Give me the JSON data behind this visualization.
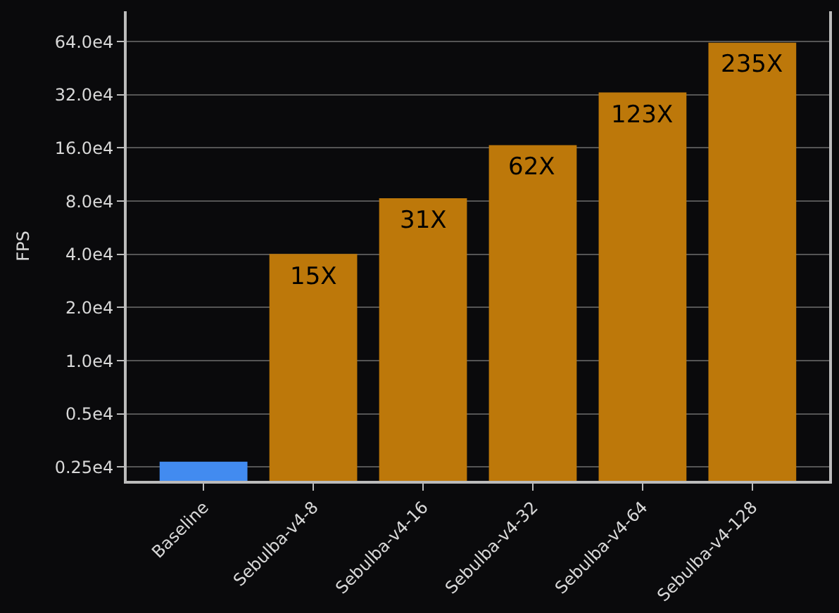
{
  "chart_data": {
    "type": "bar",
    "ylabel": "FPS",
    "categories": [
      "Baseline",
      "Sebulba-v4-8",
      "Sebulba-v4-16",
      "Sebulba-v4-32",
      "Sebulba-v4-64",
      "Sebulba-v4-128"
    ],
    "values": [
      2680,
      40200,
      83000,
      166000,
      330000,
      630000
    ],
    "colors": [
      "#428bf0",
      "#bd780a",
      "#bd780a",
      "#bd780a",
      "#bd780a",
      "#bd780a"
    ],
    "annotations": [
      {
        "text": "15X",
        "x": "Sebulba-v4-8",
        "y": 40200
      },
      {
        "text": "31X",
        "x": "Sebulba-v4-16",
        "y": 83000
      },
      {
        "text": "62X",
        "x": "Sebulba-v4-32",
        "y": 166000
      },
      {
        "text": "123X",
        "x": "Sebulba-v4-64",
        "y": 330000
      },
      {
        "text": "235X",
        "x": "Sebulba-v4-128",
        "y": 630000
      }
    ],
    "log": true,
    "ylim": [
      2090,
      950000
    ],
    "yticks": [
      {
        "value": 2500,
        "label": "0.25e4"
      },
      {
        "value": 5000,
        "label": "0.5e4"
      },
      {
        "value": 10000,
        "label": "1.0e4"
      },
      {
        "value": 20000,
        "label": "2.0e4"
      },
      {
        "value": 40000,
        "label": "4.0e4"
      },
      {
        "value": 80000,
        "label": "8.0e4"
      },
      {
        "value": 160000,
        "label": "16.0e4"
      },
      {
        "value": 320000,
        "label": "32.0e4"
      },
      {
        "value": 640000,
        "label": "64.0e4"
      }
    ],
    "grid": "y"
  }
}
